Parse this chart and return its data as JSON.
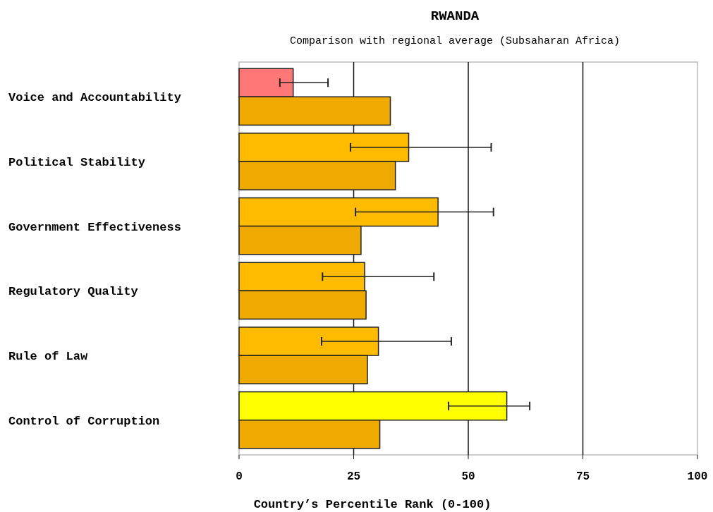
{
  "chart_data": {
    "type": "bar",
    "orientation": "horizontal",
    "title": "RWANDA",
    "subtitle": "Comparison with regional average (Subsaharan Africa)",
    "xlabel": "Country’s Percentile Rank (0-100)",
    "categories": [
      "Voice and Accountability",
      "Political Stability",
      "Government Effectiveness",
      "Regulatory Quality",
      "Rule of Law",
      "Control of Corruption"
    ],
    "series": [
      {
        "colors": [
          "#ff7777",
          "#ffbb00",
          "#ffbb00",
          "#ffbb00",
          "#ffbb00",
          "#ffff00"
        ],
        "values": [
          11.8,
          37.0,
          43.4,
          27.4,
          30.4,
          58.4
        ],
        "errors": [
          [
            8.9,
            19.4
          ],
          [
            24.3,
            55.0
          ],
          [
            25.4,
            55.5
          ],
          [
            18.2,
            42.5
          ],
          [
            18.0,
            46.3
          ],
          [
            45.7,
            63.4
          ]
        ]
      },
      {
        "color": "#eeaa00",
        "values": [
          33.0,
          34.1,
          26.6,
          27.7,
          28.0,
          30.7
        ]
      }
    ],
    "xlim": [
      0,
      100
    ],
    "xticks": [
      0,
      25,
      50,
      75,
      100
    ],
    "grid": "x"
  }
}
